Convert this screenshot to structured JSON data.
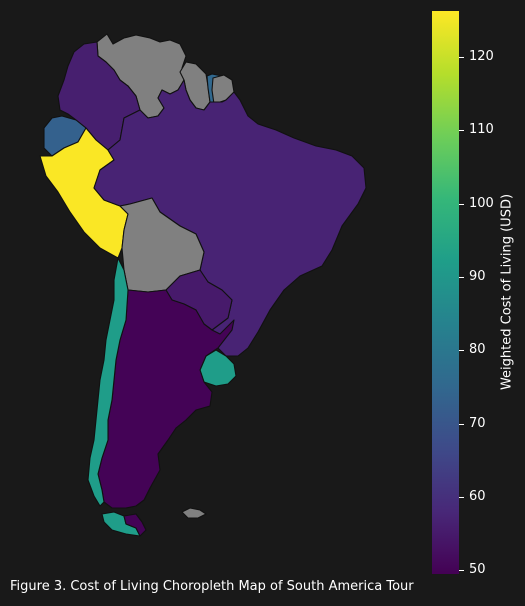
{
  "caption": "Figure 3. Cost of Living Choropleth Map of South America Tour",
  "colorbar": {
    "label": "Weighted Cost of Living (USD)",
    "min": 49.5,
    "max": 126.3,
    "ticks": [
      50,
      60,
      70,
      80,
      90,
      100,
      110,
      120
    ],
    "colormap": "viridis",
    "stops": [
      "#440154",
      "#482878",
      "#3e4a89",
      "#31688e",
      "#26828e",
      "#1f9e89",
      "#35b779",
      "#6ece58",
      "#b5de2b",
      "#fde725"
    ]
  },
  "chart_data": {
    "type": "choropleth",
    "region": "South America",
    "value_label": "Weighted Cost of Living (USD)",
    "no_data_color": "#808080",
    "countries": [
      {
        "name": "Peru",
        "value": 126
      },
      {
        "name": "Chile",
        "value": 92
      },
      {
        "name": "Uruguay",
        "value": 92
      },
      {
        "name": "Ecuador",
        "value": 73
      },
      {
        "name": "Suriname",
        "value": 75
      },
      {
        "name": "Brazil",
        "value": 57
      },
      {
        "name": "Colombia",
        "value": 56
      },
      {
        "name": "Paraguay",
        "value": 55
      },
      {
        "name": "Argentina",
        "value": 50
      },
      {
        "name": "Venezuela",
        "value": null
      },
      {
        "name": "Guyana",
        "value": null
      },
      {
        "name": "French Guiana",
        "value": null
      },
      {
        "name": "Bolivia",
        "value": null
      },
      {
        "name": "Falkland Islands",
        "value": null
      }
    ]
  }
}
